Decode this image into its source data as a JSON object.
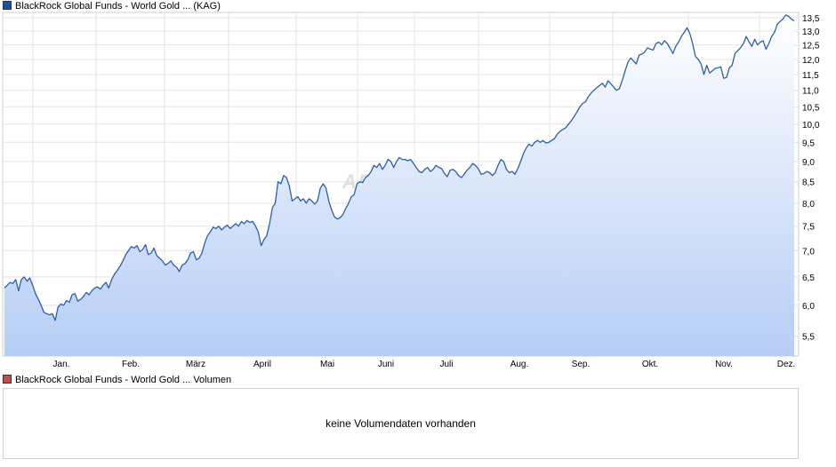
{
  "price_legend": {
    "label": "BlackRock Global Funds - World Gold ... (KAG)",
    "color": "#1f4e9c"
  },
  "volume_legend": {
    "label": "BlackRock Global Funds - World Gold ... Volumen",
    "color": "#c0504d"
  },
  "volume_panel": {
    "message": "keine Volumendaten vorhanden"
  },
  "watermark": "ARIVA",
  "chart_data": {
    "type": "area",
    "series": [
      {
        "name": "BlackRock Global Funds - World Gold ... (KAG)",
        "color": "#2b5fae",
        "y": [
          6.3,
          6.35,
          6.4,
          6.38,
          6.45,
          6.25,
          6.45,
          6.5,
          6.42,
          6.48,
          6.35,
          6.2,
          6.1,
          6.0,
          5.88,
          5.86,
          5.84,
          5.86,
          5.75,
          5.97,
          6.02,
          6.0,
          6.08,
          6.05,
          6.18,
          6.2,
          6.07,
          6.1,
          6.15,
          6.22,
          6.18,
          6.25,
          6.3,
          6.32,
          6.28,
          6.35,
          6.4,
          6.3,
          6.45,
          6.55,
          6.62,
          6.7,
          6.8,
          6.92,
          7.0,
          7.08,
          7.05,
          7.1,
          6.98,
          7.02,
          7.12,
          6.92,
          6.95,
          7.05,
          6.9,
          6.85,
          6.8,
          6.72,
          6.75,
          6.8,
          6.72,
          6.68,
          6.6,
          6.72,
          6.75,
          6.82,
          6.95,
          6.98,
          6.82,
          6.85,
          6.95,
          7.15,
          7.3,
          7.38,
          7.48,
          7.45,
          7.5,
          7.42,
          7.48,
          7.52,
          7.45,
          7.5,
          7.55,
          7.5,
          7.6,
          7.55,
          7.62,
          7.58,
          7.6,
          7.5,
          7.38,
          7.1,
          7.22,
          7.3,
          7.55,
          7.9,
          8.0,
          8.5,
          8.45,
          8.65,
          8.6,
          8.4,
          8.05,
          8.1,
          8.15,
          8.05,
          8.1,
          8.0,
          8.1,
          8.05,
          7.98,
          8.05,
          8.35,
          8.45,
          8.35,
          8.05,
          7.85,
          7.7,
          7.65,
          7.68,
          7.75,
          7.88,
          8.0,
          8.15,
          8.2,
          8.45,
          8.5,
          8.48,
          8.6,
          8.65,
          8.75,
          8.9,
          8.85,
          8.95,
          8.8,
          8.9,
          9.05,
          9.0,
          8.85,
          9.0,
          9.1,
          9.05,
          9.05,
          9.02,
          9.05,
          8.95,
          8.85,
          8.75,
          8.72,
          8.8,
          8.85,
          8.75,
          8.8,
          8.9,
          8.85,
          8.82,
          8.7,
          8.62,
          8.78,
          8.8,
          8.75,
          8.65,
          8.6,
          8.68,
          8.78,
          8.85,
          8.95,
          8.9,
          8.82,
          8.68,
          8.7,
          8.75,
          8.72,
          8.65,
          8.72,
          8.9,
          9.05,
          9.0,
          8.8,
          8.72,
          8.75,
          8.68,
          8.82,
          9.0,
          9.2,
          9.35,
          9.45,
          9.4,
          9.5,
          9.55,
          9.5,
          9.55,
          9.48,
          9.5,
          9.55,
          9.6,
          9.72,
          9.8,
          9.85,
          9.9,
          10.0,
          10.1,
          10.22,
          10.35,
          10.5,
          10.6,
          10.65,
          10.8,
          10.92,
          11.0,
          11.08,
          11.15,
          11.22,
          11.1,
          11.3,
          11.2,
          11.1,
          11.0,
          11.05,
          11.3,
          11.6,
          11.9,
          12.05,
          11.95,
          11.85,
          12.15,
          12.18,
          12.25,
          12.4,
          12.35,
          12.32,
          12.55,
          12.6,
          12.5,
          12.65,
          12.55,
          12.38,
          12.2,
          12.45,
          12.6,
          12.8,
          12.95,
          13.12,
          12.9,
          12.55,
          12.1,
          12.0,
          11.85,
          11.5,
          11.8,
          11.55,
          11.62,
          11.7,
          11.72,
          11.75,
          11.38,
          11.4,
          11.72,
          11.8,
          12.2,
          12.3,
          12.4,
          12.55,
          12.8,
          12.6,
          12.45,
          12.7,
          12.5,
          12.6,
          12.65,
          12.35,
          12.55,
          12.8,
          12.95,
          13.25,
          13.35,
          13.45,
          13.6,
          13.55,
          13.45,
          13.38
        ]
      }
    ],
    "x_ticks": [
      "Jan.",
      "Feb.",
      "März",
      "April",
      "Mai",
      "Juni",
      "Juli",
      "Aug.",
      "Sep.",
      "Okt.",
      "Nov.",
      "Dez."
    ],
    "y_ticks": [
      "5,5",
      "6,0",
      "6,5",
      "7,0",
      "7,5",
      "8,0",
      "8,5",
      "9,0",
      "9,5",
      "10,0",
      "10,5",
      "11,0",
      "11,5",
      "12,0",
      "12,5",
      "13,0",
      "13,5"
    ],
    "ylim": [
      5.2,
      13.7
    ],
    "y_scale": "log",
    "grid": true,
    "legend_position": "top-left"
  }
}
